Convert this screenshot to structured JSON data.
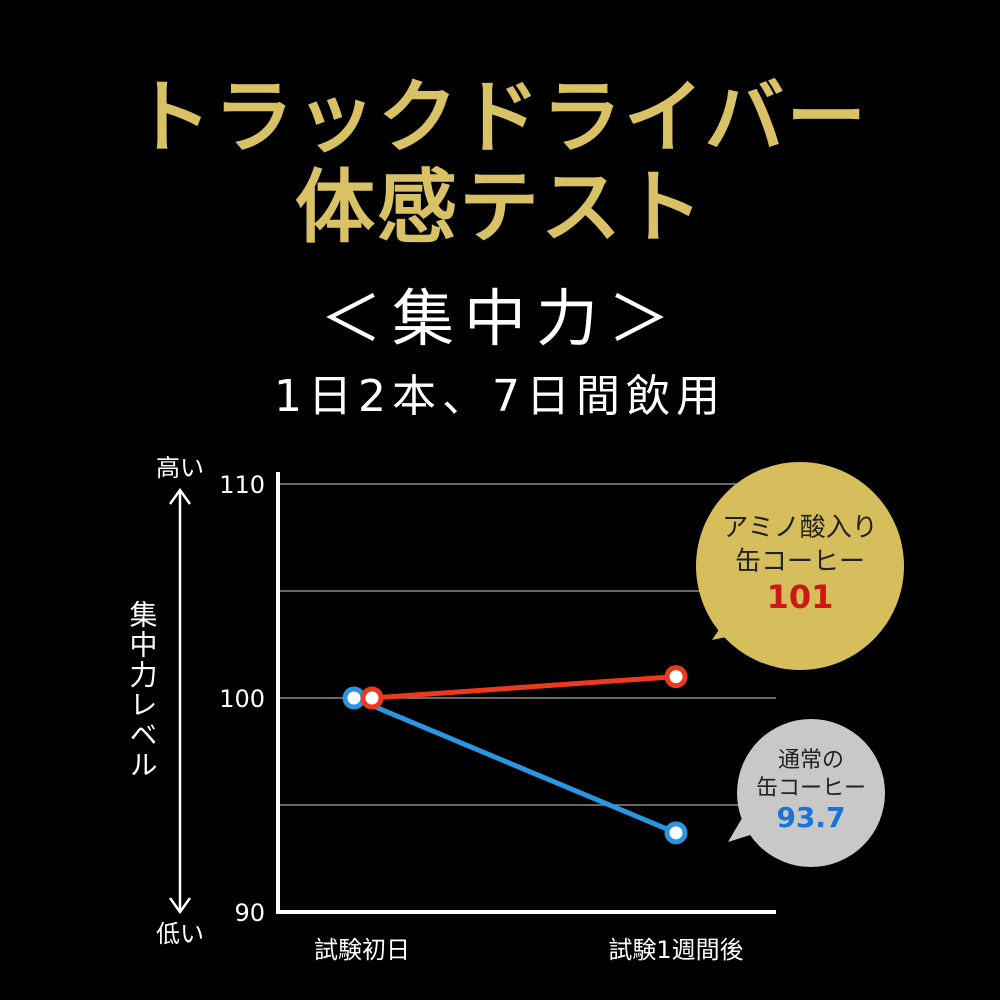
{
  "header": {
    "title_line1": "トラックドライバー",
    "title_line2": "体感テスト",
    "subtitle": "＜集中力＞",
    "note": "1日2本、7日間飲用"
  },
  "colors": {
    "title": "#d9c265",
    "amino_series": "#ee3a1c",
    "normal_series": "#2a95e0",
    "amino_bubble": "#d6be5c",
    "normal_bubble": "#c8c8c8",
    "amino_value_text": "#cc1a12",
    "normal_value_text": "#1a73d6"
  },
  "chart_data": {
    "type": "line",
    "categories": [
      "試験初日",
      "試験1週間後"
    ],
    "ylim": [
      90,
      110
    ],
    "yticks": [
      "110",
      "100",
      "90"
    ],
    "ylabel": "集中力レベル",
    "y_high_label": "高い",
    "y_low_label": "低い",
    "grid": true,
    "series": [
      {
        "key": "amino",
        "values": [
          100,
          101
        ]
      },
      {
        "key": "normal",
        "values": [
          100,
          93.7
        ]
      }
    ],
    "callouts": [
      {
        "series_key": "amino",
        "line1": "アミノ酸入り",
        "line2": "缶コーヒー",
        "value_text": "101"
      },
      {
        "series_key": "normal",
        "line1": "通常の",
        "line2": "缶コーヒー",
        "value_text": "93.7"
      }
    ]
  }
}
